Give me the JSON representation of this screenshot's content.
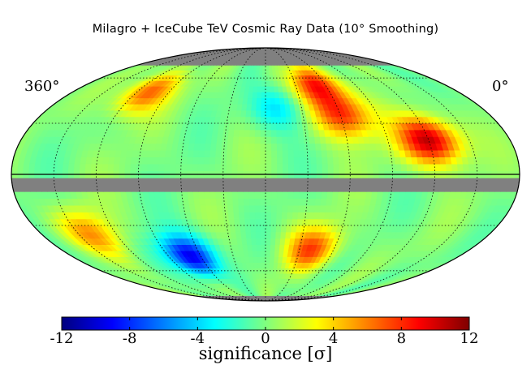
{
  "chart_data": {
    "type": "heatmap",
    "projection": "mollweide sky map",
    "title": "Milagro + IceCube TeV Cosmic Ray Data (10° Smoothing)",
    "edge_labels": {
      "left": "360°",
      "right": "0°"
    },
    "colorbar": {
      "label": "significance [σ]",
      "range": [
        -12,
        12
      ],
      "ticks": [
        -12,
        -8,
        -4,
        0,
        4,
        8,
        12
      ],
      "tick_labels": [
        "-12",
        "-8",
        "-4",
        "0",
        "4",
        "8",
        "12"
      ],
      "colors": [
        "#00007f",
        "#0000ff",
        "#007fff",
        "#00ffff",
        "#7fff7f",
        "#ffff00",
        "#ff7f00",
        "#ff0000",
        "#7f0000"
      ]
    },
    "masked_color": "#808080",
    "blobs": [
      {
        "region": "north-center",
        "lon": 130,
        "lat": 55,
        "sigma": 9
      },
      {
        "region": "north-center-long",
        "lon": 120,
        "lat": 35,
        "sigma": 8
      },
      {
        "region": "north-right",
        "lon": 60,
        "lat": 20,
        "sigma": 11
      },
      {
        "region": "north-left",
        "lon": 290,
        "lat": 50,
        "sigma": 7
      },
      {
        "region": "north-mid-deficit",
        "lon": 170,
        "lat": 40,
        "sigma": -4
      },
      {
        "region": "south-deficit",
        "lon": 250,
        "lat": -50,
        "sigma": -10
      },
      {
        "region": "south-excess",
        "lon": 140,
        "lat": -45,
        "sigma": 7
      },
      {
        "region": "south-left-excess",
        "lon": 320,
        "lat": -35,
        "sigma": 5
      }
    ]
  }
}
